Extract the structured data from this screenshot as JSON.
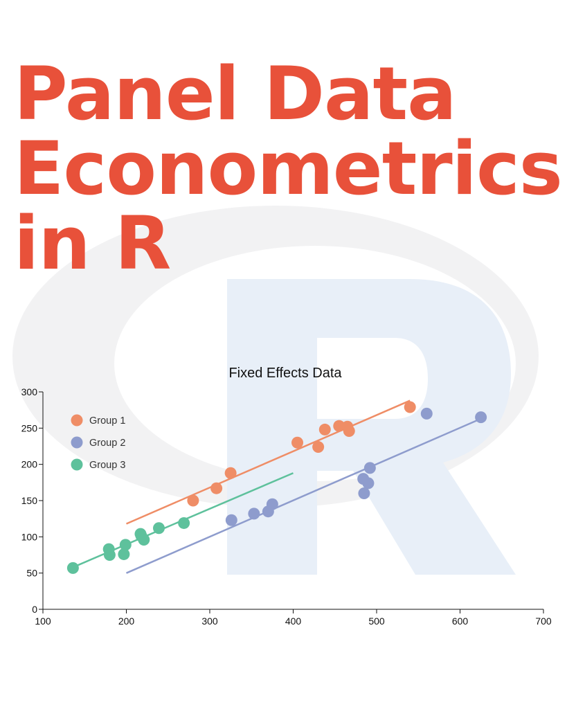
{
  "headline": {
    "lines": [
      "Panel Data",
      "Econometrics",
      "in R"
    ]
  },
  "colors": {
    "headline": "#e8513a",
    "logo_ring": "#f2f2f3",
    "logo_letter": "#e8eff8",
    "group1": "#ef8d66",
    "group2": "#8e9ccd",
    "group3": "#5ec19c"
  },
  "background_logo": {
    "icon": "r-logo-watermark"
  },
  "chart_data": {
    "type": "scatter",
    "title": "Fixed Effects Data",
    "xlabel": "",
    "ylabel": "",
    "xlim": [
      100,
      700
    ],
    "ylim": [
      0,
      300
    ],
    "xticks": [
      100,
      200,
      300,
      400,
      500,
      600,
      700
    ],
    "yticks": [
      0,
      50,
      100,
      150,
      200,
      250,
      300
    ],
    "grid": false,
    "legend": "top-left",
    "series": [
      {
        "name": "Group 1",
        "color": "#ef8d66",
        "points": [
          [
            280,
            150
          ],
          [
            308,
            167
          ],
          [
            325,
            188
          ],
          [
            405,
            230
          ],
          [
            430,
            224
          ],
          [
            438,
            248
          ],
          [
            455,
            253
          ],
          [
            465,
            252
          ],
          [
            467,
            246
          ],
          [
            540,
            279
          ]
        ],
        "fit": [
          [
            200,
            118
          ],
          [
            540,
            288
          ]
        ]
      },
      {
        "name": "Group 2",
        "color": "#8e9ccd",
        "points": [
          [
            326,
            123
          ],
          [
            353,
            132
          ],
          [
            370,
            135
          ],
          [
            375,
            145
          ],
          [
            484,
            180
          ],
          [
            485,
            160
          ],
          [
            490,
            174
          ],
          [
            492,
            195
          ],
          [
            560,
            270
          ],
          [
            625,
            265
          ]
        ],
        "fit": [
          [
            200,
            50
          ],
          [
            625,
            263
          ]
        ]
      },
      {
        "name": "Group 3",
        "color": "#5ec19c",
        "points": [
          [
            136,
            57
          ],
          [
            179,
            83
          ],
          [
            180,
            75
          ],
          [
            197,
            76
          ],
          [
            199,
            89
          ],
          [
            217,
            104
          ],
          [
            218,
            101
          ],
          [
            221,
            96
          ],
          [
            239,
            112
          ],
          [
            269,
            119
          ]
        ],
        "fit": [
          [
            136,
            58
          ],
          [
            400,
            188
          ]
        ]
      }
    ]
  }
}
